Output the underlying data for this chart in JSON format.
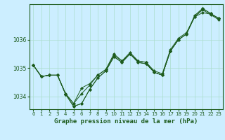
{
  "title": "Graphe pression niveau de la mer (hPa)",
  "bg_color": "#cceeff",
  "grid_color": "#aaddcc",
  "line_color": "#1e5c1e",
  "xlim": [
    -0.5,
    23.5
  ],
  "ylim": [
    1033.55,
    1037.25
  ],
  "yticks": [
    1034,
    1035,
    1036
  ],
  "xticks": [
    0,
    1,
    2,
    3,
    4,
    5,
    6,
    7,
    8,
    9,
    10,
    11,
    12,
    13,
    14,
    15,
    16,
    17,
    18,
    19,
    20,
    21,
    22,
    23
  ],
  "series": [
    [
      1035.1,
      1034.7,
      1034.75,
      1034.75,
      1034.1,
      1033.75,
      1034.3,
      1034.45,
      1034.75,
      1034.95,
      1035.45,
      1035.25,
      1035.5,
      1035.25,
      1035.2,
      1034.85,
      1034.75,
      1035.6,
      1036.0,
      1036.2,
      1036.8,
      1036.95,
      1036.9,
      1036.75
    ],
    [
      1035.1,
      1034.7,
      1034.75,
      1034.75,
      1034.1,
      1033.75,
      1034.1,
      1034.4,
      1034.75,
      1034.95,
      1035.5,
      1035.25,
      1035.55,
      1035.25,
      1035.2,
      1034.9,
      1034.8,
      1035.65,
      1036.05,
      1036.25,
      1036.8,
      1037.1,
      1036.92,
      1036.75
    ],
    [
      1035.1,
      1034.7,
      1034.75,
      1034.75,
      1034.08,
      1033.65,
      1033.75,
      1034.25,
      1034.65,
      1034.9,
      1035.4,
      1035.2,
      1035.5,
      1035.2,
      1035.15,
      1034.85,
      1034.75,
      1035.6,
      1036.0,
      1036.2,
      1036.8,
      1037.05,
      1036.88,
      1036.7
    ],
    [
      1035.1,
      1034.7,
      1034.75,
      1034.75,
      1034.08,
      1033.65,
      1033.75,
      1034.25,
      1034.65,
      1034.9,
      1035.4,
      1035.2,
      1035.5,
      1035.2,
      1035.15,
      1034.85,
      1034.75,
      1035.6,
      1036.0,
      1036.2,
      1036.85,
      1037.1,
      1036.92,
      1036.75
    ]
  ],
  "figsize": [
    3.2,
    2.0
  ],
  "dpi": 100
}
